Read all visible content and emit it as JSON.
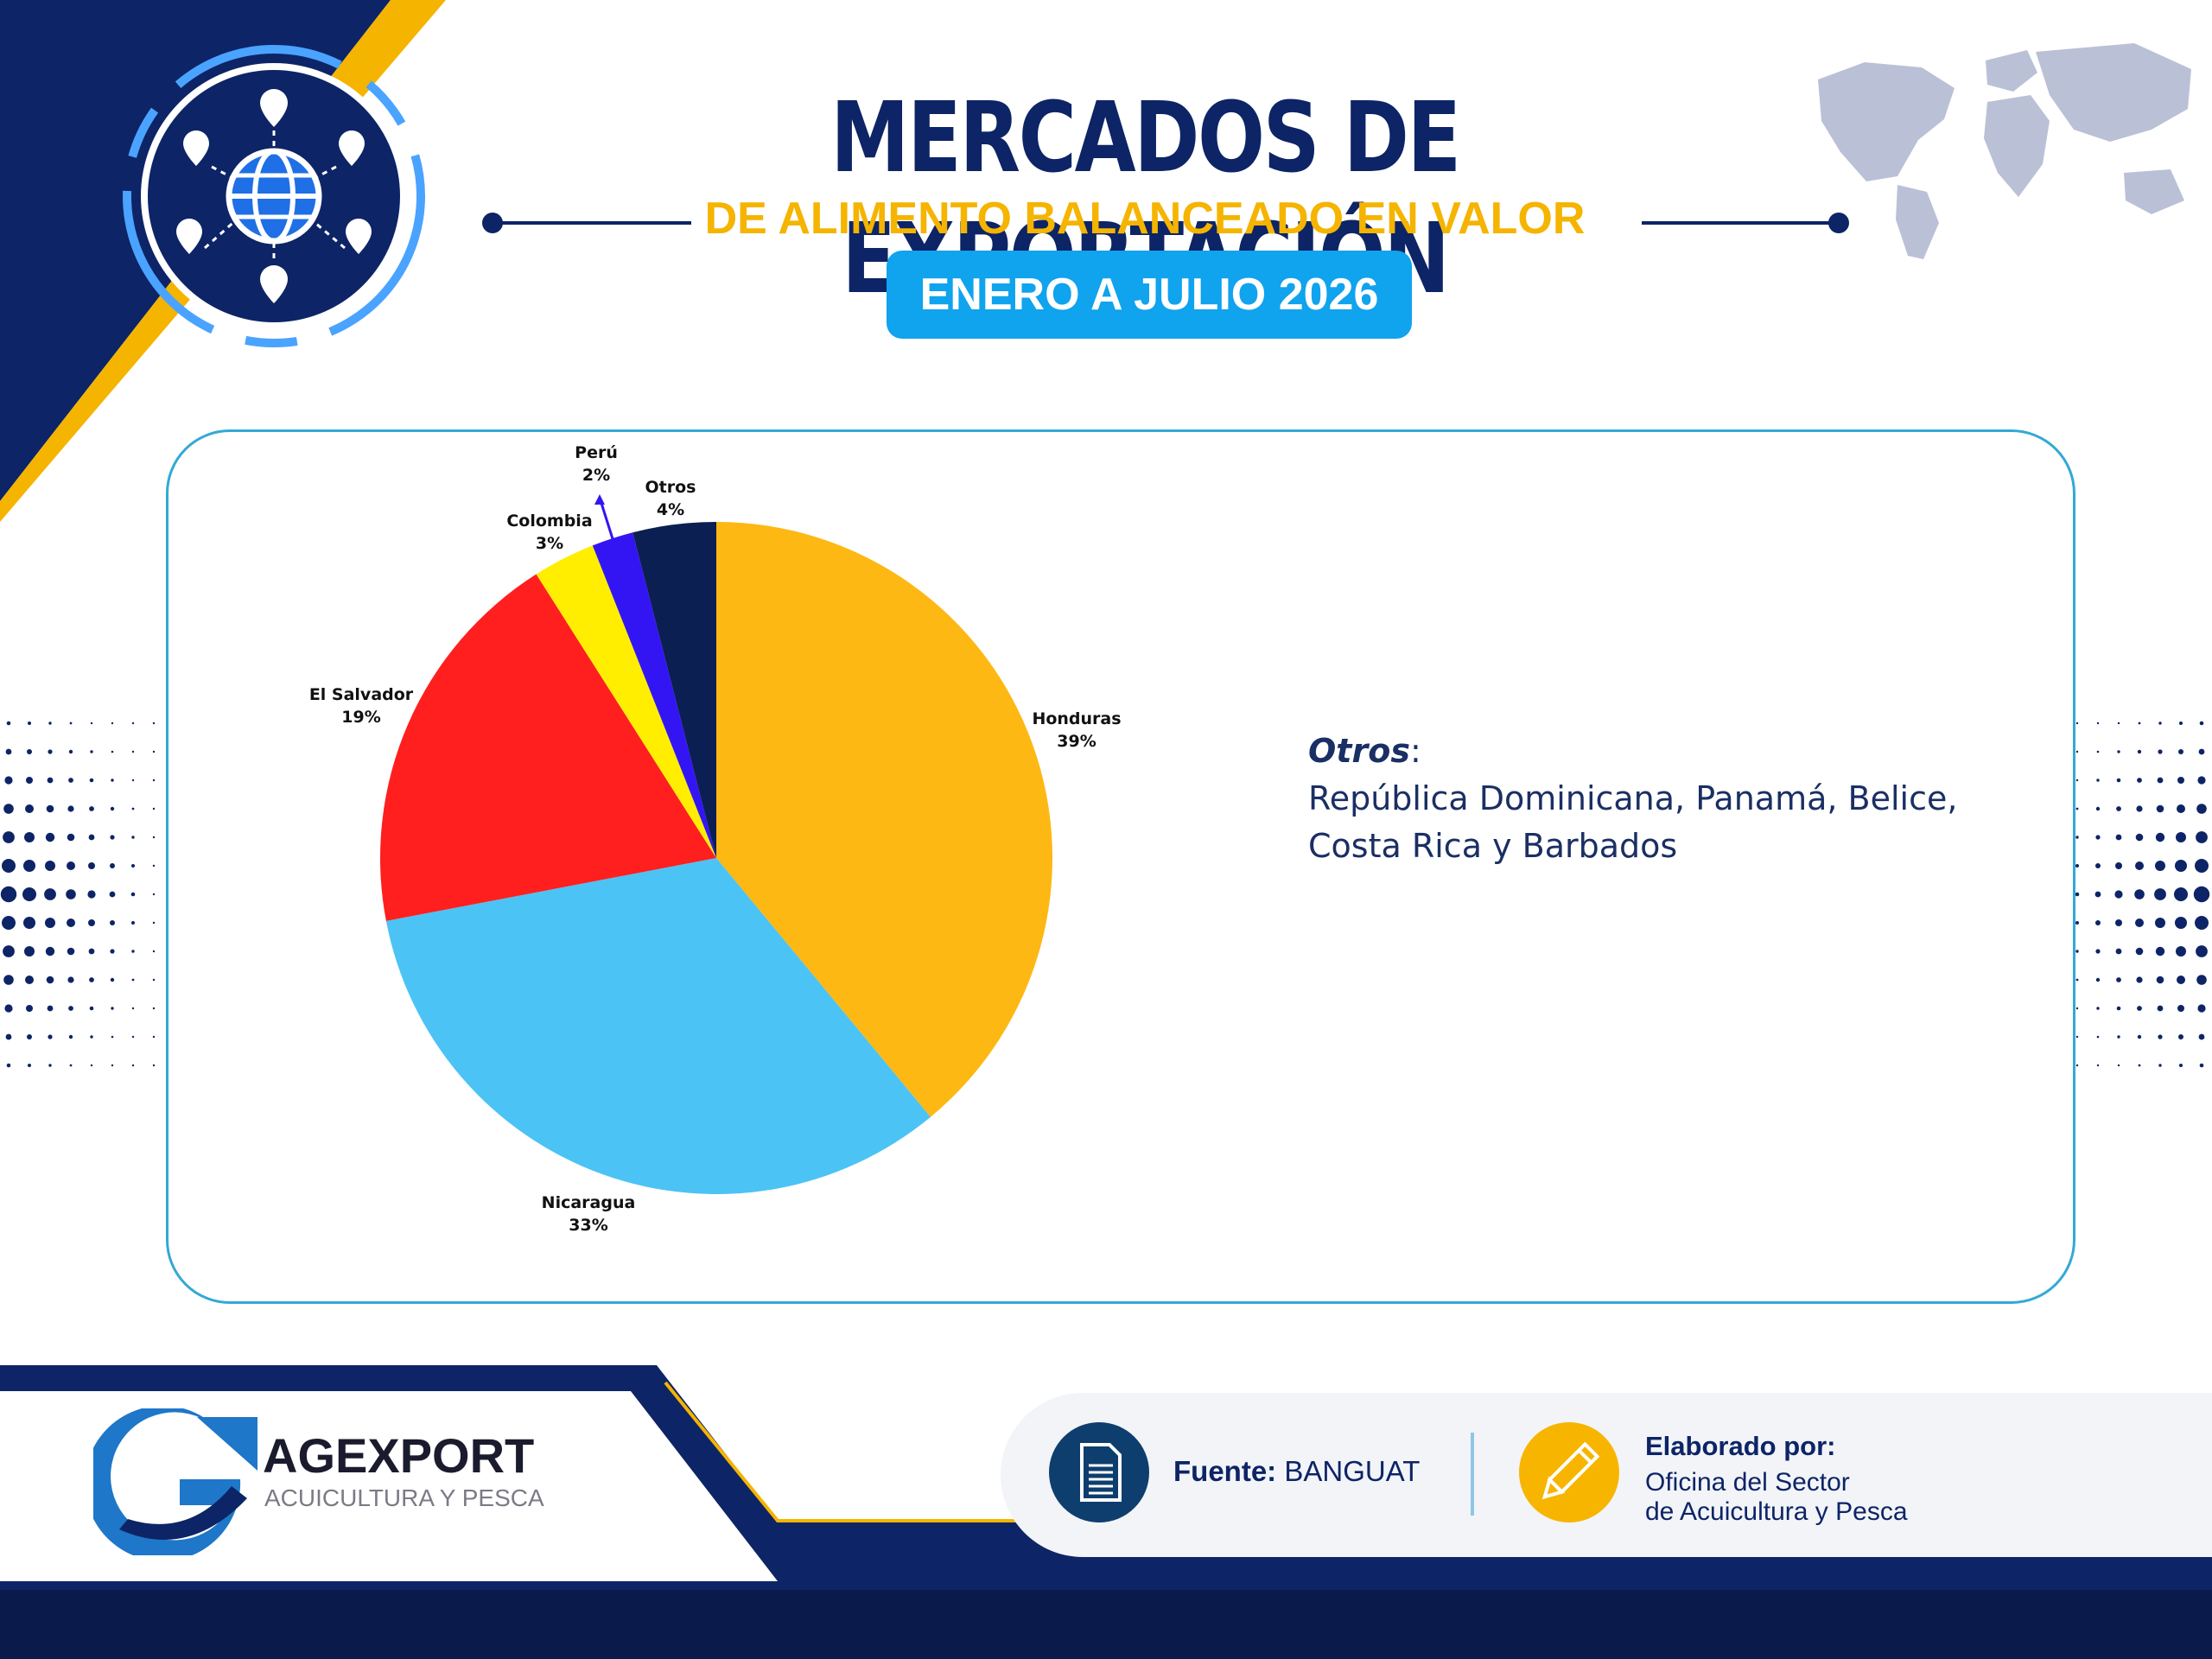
{
  "header": {
    "title": "MERCADOS DE EXPORTACIÓN",
    "subtitle": "DE ALIMENTO BALANCEADO EN VALOR",
    "period": "ENERO A JULIO 2026"
  },
  "colors": {
    "navy": "#0d2466",
    "gold": "#f5b400",
    "sky": "#10a3ee",
    "panel_border": "#33a9d5"
  },
  "icons": {
    "header_badge": "globe-location-network-icon",
    "world_map": "world-map-icon",
    "source": "document-icon",
    "author": "pencil-icon",
    "brand": "agexport-logo"
  },
  "chart_data": {
    "type": "pie",
    "unit": "%",
    "slices": [
      {
        "label": "Honduras",
        "value": 39,
        "display": "39%",
        "color": "#fdb813"
      },
      {
        "label": "Nicaragua",
        "value": 33,
        "display": "33%",
        "color": "#4bc3f5"
      },
      {
        "label": "El Salvador",
        "value": 19,
        "display": "19%",
        "color": "#ff1f1f"
      },
      {
        "label": "Colombia",
        "value": 3,
        "display": "3%",
        "color": "#ffee00"
      },
      {
        "label": "Perú",
        "value": 2,
        "display": "2%",
        "color": "#3315f4"
      },
      {
        "label": "Otros",
        "value": 4,
        "display": "4%",
        "color": "#0b1f52"
      }
    ]
  },
  "otros_note": {
    "title": "Otros",
    "colon": ":",
    "line1": "República Dominicana, Panamá, Belice,",
    "line2": "Costa Rica y Barbados"
  },
  "footer": {
    "logo_title": "AGEXPORT",
    "logo_subtitle": "ACUICULTURA Y PESCA",
    "source_label": "Fuente:",
    "source_value": "BANGUAT",
    "author_label": "Elaborado por:",
    "author_line1": "Oficina del Sector",
    "author_line2": "de Acuicultura y Pesca"
  }
}
